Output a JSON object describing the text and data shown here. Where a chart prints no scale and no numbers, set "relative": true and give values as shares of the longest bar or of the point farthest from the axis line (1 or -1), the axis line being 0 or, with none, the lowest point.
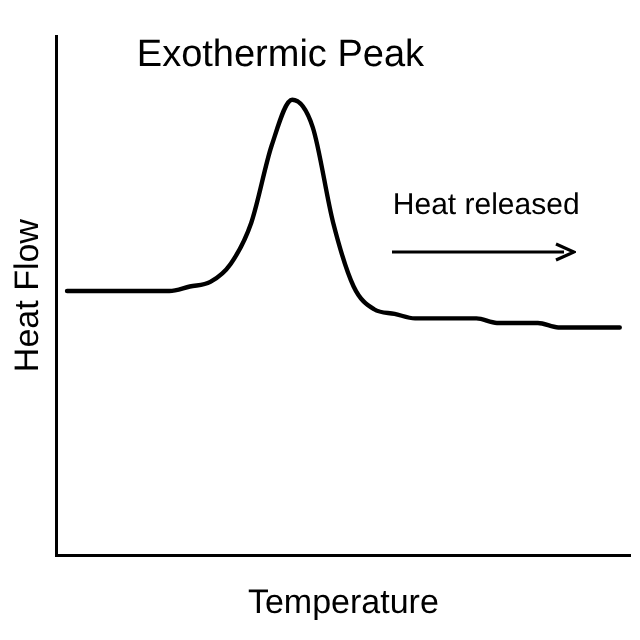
{
  "chart_data": {
    "type": "line",
    "title": "Exothermic Peak",
    "xlabel": "Temperature",
    "ylabel": "Heat Flow",
    "relative": true,
    "categories": [
      null,
      null,
      null,
      null,
      null,
      null,
      null,
      null,
      null,
      null,
      null,
      null,
      null,
      null,
      null,
      null,
      null,
      null,
      null,
      null,
      null,
      null,
      null,
      null,
      null,
      null,
      null,
      null
    ],
    "series": [
      {
        "color": "#000000",
        "values": [
          0.58,
          0.58,
          0.58,
          0.58,
          0.58,
          0.58,
          0.59,
          0.6,
          0.64,
          0.73,
          0.9,
          1,
          0.94,
          0.73,
          0.59,
          0.54,
          0.53,
          0.52,
          0.52,
          0.52,
          0.52,
          0.51,
          0.51,
          0.51,
          0.5,
          0.5,
          0.5,
          0.5
        ]
      }
    ],
    "annotations": [
      "Heat released"
    ],
    "grid": false,
    "legend": false,
    "marker": "none",
    "line_style": "solid"
  }
}
